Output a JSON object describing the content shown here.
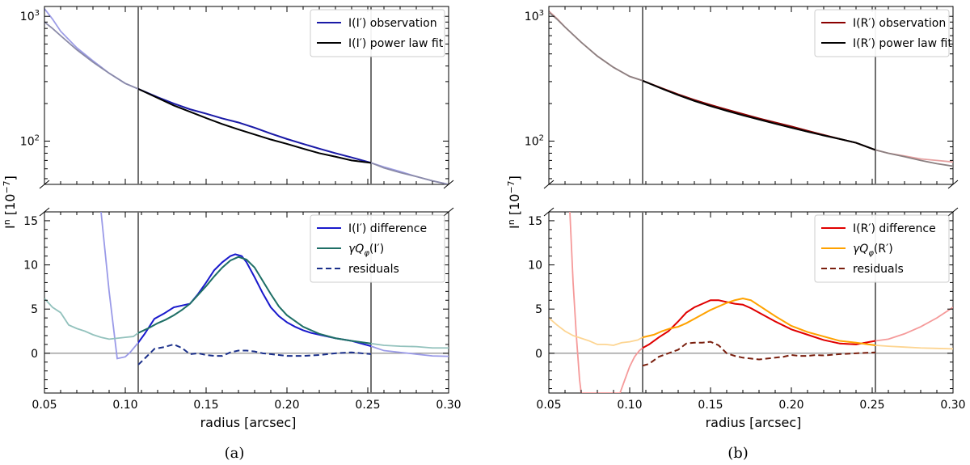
{
  "chart_data": [
    {
      "type": "line",
      "panel_label": "(a)",
      "xlabel": "radius [arcsec]",
      "ylabel_top": "I",
      "ylabel_sup": "n",
      "ylabel_unit": "[10",
      "ylabel_unit_exp": "−7",
      "ylabel_unit_close": "]",
      "xlim": [
        0.05,
        0.3
      ],
      "x_ticks": [
        0.05,
        0.1,
        0.15,
        0.2,
        0.25,
        0.3
      ],
      "x_tick_labels": [
        "0.05",
        "0.10",
        "0.15",
        "0.20",
        "0.25",
        "0.30"
      ],
      "vlines": [
        0.108,
        0.252
      ],
      "top": {
        "yscale": "log",
        "ylim": [
          45,
          1200
        ],
        "y_tick_labels": [
          {
            "value": 1000,
            "base": "10",
            "exp": "3"
          },
          {
            "value": 100,
            "base": "10",
            "exp": "2"
          }
        ],
        "series": [
          {
            "name": "I(I′) observation",
            "color": "#1a1aa6",
            "dash": "",
            "faded_color": "#9c9ce6",
            "x": [
              0.05,
              0.055,
              0.06,
              0.07,
              0.08,
              0.09,
              0.1,
              0.108,
              0.12,
              0.13,
              0.14,
              0.15,
              0.16,
              0.17,
              0.18,
              0.19,
              0.2,
              0.21,
              0.22,
              0.23,
              0.24,
              0.252,
              0.26,
              0.27,
              0.28,
              0.29,
              0.3
            ],
            "y": [
              1150,
              950,
              760,
              560,
              440,
              350,
              290,
              262,
              225,
              200,
              180,
              166,
              152,
              141,
              128,
              115,
              104,
              95,
              87,
              80,
              74,
              67,
              62,
              57,
              52,
              48,
              45
            ]
          },
          {
            "name": "I(I′) power law fit",
            "color": "#000000",
            "dash": "",
            "faded_color": "#8a8aa8",
            "x": [
              0.05,
              0.055,
              0.06,
              0.07,
              0.08,
              0.09,
              0.1,
              0.108,
              0.12,
              0.13,
              0.14,
              0.15,
              0.16,
              0.17,
              0.18,
              0.19,
              0.2,
              0.21,
              0.22,
              0.23,
              0.24,
              0.252,
              0.26,
              0.27,
              0.28,
              0.29,
              0.3
            ],
            "y": [
              900,
              800,
              700,
              540,
              430,
              350,
              290,
              262,
              222,
              193,
              172,
              153,
              137,
              124,
              113,
              103,
              95,
              87,
              80,
              75,
              70,
              67,
              61,
              56,
              52,
              48,
              45
            ]
          }
        ]
      },
      "bottom": {
        "yscale": "linear",
        "ylim": [
          -4.5,
          16
        ],
        "y_ticks": [
          0,
          5,
          10,
          15
        ],
        "y_tick_labels": [
          "0",
          "5",
          "10",
          "15"
        ],
        "zero_line": true,
        "series": [
          {
            "name": "I(I′) difference",
            "color": "#1a1acc",
            "dash": "",
            "faded_color": "#9a9ae8",
            "x": [
              0.085,
              0.09,
              0.095,
              0.1,
              0.103,
              0.108,
              0.112,
              0.118,
              0.124,
              0.13,
              0.135,
              0.14,
              0.145,
              0.15,
              0.155,
              0.16,
              0.165,
              0.168,
              0.172,
              0.175,
              0.18,
              0.185,
              0.19,
              0.195,
              0.2,
              0.205,
              0.21,
              0.215,
              0.22,
              0.23,
              0.24,
              0.252,
              0.26,
              0.27,
              0.28,
              0.29,
              0.3
            ],
            "y": [
              16,
              7,
              -0.6,
              -0.4,
              0.1,
              1.2,
              2.2,
              3.9,
              4.5,
              5.2,
              5.4,
              5.6,
              6.7,
              8.0,
              9.4,
              10.3,
              11.0,
              11.2,
              11.0,
              10.3,
              8.6,
              6.8,
              5.2,
              4.2,
              3.5,
              3.0,
              2.6,
              2.3,
              2.1,
              1.7,
              1.4,
              0.8,
              0.3,
              0.1,
              -0.1,
              -0.3,
              -0.35
            ]
          },
          {
            "name": "γQφ(I′)",
            "color": "#1f6f66",
            "dash": "",
            "faded_color": "#93c2bd",
            "x": [
              0.05,
              0.055,
              0.06,
              0.065,
              0.07,
              0.075,
              0.08,
              0.085,
              0.09,
              0.095,
              0.1,
              0.105,
              0.108,
              0.115,
              0.12,
              0.125,
              0.13,
              0.135,
              0.14,
              0.145,
              0.15,
              0.155,
              0.16,
              0.165,
              0.17,
              0.175,
              0.18,
              0.185,
              0.19,
              0.195,
              0.2,
              0.21,
              0.22,
              0.23,
              0.24,
              0.252,
              0.26,
              0.27,
              0.28,
              0.29,
              0.3
            ],
            "y": [
              6.2,
              5.2,
              4.6,
              3.2,
              2.8,
              2.5,
              2.1,
              1.8,
              1.6,
              1.7,
              1.8,
              1.9,
              2.3,
              2.9,
              3.4,
              3.8,
              4.3,
              4.9,
              5.6,
              6.6,
              7.6,
              8.7,
              9.7,
              10.5,
              10.9,
              10.6,
              9.7,
              8.2,
              6.7,
              5.3,
              4.3,
              3.0,
              2.2,
              1.7,
              1.4,
              1.1,
              0.9,
              0.8,
              0.75,
              0.6,
              0.6
            ]
          },
          {
            "name": "residuals",
            "color": "#1a2f8a",
            "dash": "7,4",
            "faded_color": "#1a2f8a",
            "x": [
              0.108,
              0.112,
              0.118,
              0.124,
              0.13,
              0.135,
              0.14,
              0.145,
              0.15,
              0.155,
              0.16,
              0.165,
              0.17,
              0.175,
              0.18,
              0.185,
              0.19,
              0.195,
              0.2,
              0.205,
              0.21,
              0.215,
              0.22,
              0.23,
              0.24,
              0.252
            ],
            "y": [
              -1.3,
              -0.6,
              0.5,
              0.7,
              1.0,
              0.6,
              -0.1,
              0.0,
              -0.2,
              -0.3,
              -0.3,
              0.1,
              0.3,
              0.3,
              0.2,
              0.0,
              -0.1,
              -0.2,
              -0.3,
              -0.3,
              -0.3,
              -0.25,
              -0.2,
              0.0,
              0.1,
              -0.1
            ]
          }
        ]
      }
    },
    {
      "type": "line",
      "panel_label": "(b)",
      "xlabel": "radius [arcsec]",
      "ylabel_top": "I",
      "ylabel_sup": "n",
      "ylabel_unit": "[10",
      "ylabel_unit_exp": "−7",
      "ylabel_unit_close": "]",
      "xlim": [
        0.05,
        0.3
      ],
      "x_ticks": [
        0.05,
        0.1,
        0.15,
        0.2,
        0.25,
        0.3
      ],
      "x_tick_labels": [
        "0.05",
        "0.10",
        "0.15",
        "0.20",
        "0.25",
        "0.30"
      ],
      "vlines": [
        0.108,
        0.252
      ],
      "top": {
        "yscale": "log",
        "ylim": [
          45,
          1200
        ],
        "y_tick_labels": [
          {
            "value": 1000,
            "base": "10",
            "exp": "3"
          },
          {
            "value": 100,
            "base": "10",
            "exp": "2"
          }
        ],
        "series": [
          {
            "name": "I(R′) observation",
            "color": "#8b0000",
            "dash": "",
            "faded_color": "#e6a0a0",
            "x": [
              0.05,
              0.055,
              0.06,
              0.07,
              0.08,
              0.09,
              0.1,
              0.108,
              0.12,
              0.13,
              0.14,
              0.15,
              0.16,
              0.17,
              0.18,
              0.19,
              0.2,
              0.21,
              0.22,
              0.23,
              0.24,
              0.252,
              0.26,
              0.27,
              0.28,
              0.29,
              0.3
            ],
            "y": [
              1100,
              960,
              820,
              620,
              480,
              390,
              330,
              305,
              265,
              237,
              214,
              195,
              179,
              165,
              152,
              141,
              131,
              121,
              112,
              104,
              97,
              85,
              80,
              76,
              72,
              70,
              68
            ]
          },
          {
            "name": "I(R′) power law fit",
            "color": "#000000",
            "dash": "",
            "faded_color": "#8a7f80",
            "x": [
              0.05,
              0.055,
              0.06,
              0.07,
              0.08,
              0.09,
              0.1,
              0.108,
              0.12,
              0.13,
              0.14,
              0.15,
              0.16,
              0.17,
              0.18,
              0.19,
              0.2,
              0.21,
              0.22,
              0.23,
              0.24,
              0.252,
              0.26,
              0.27,
              0.28,
              0.29,
              0.3
            ],
            "y": [
              1080,
              950,
              820,
              620,
              480,
              390,
              330,
              305,
              263,
              234,
              210,
              191,
              175,
              161,
              149,
              138,
              128,
              119,
              111,
              104,
              97,
              85,
              80,
              75,
              70,
              66,
              63
            ]
          }
        ]
      },
      "bottom": {
        "yscale": "linear",
        "ylim": [
          -4.5,
          16
        ],
        "y_ticks": [
          0,
          5,
          10,
          15
        ],
        "y_tick_labels": [
          "0",
          "5",
          "10",
          "15"
        ],
        "zero_line": true,
        "series": [
          {
            "name": "I(R′) difference",
            "color": "#e00000",
            "dash": "",
            "faded_color": "#f59a9a",
            "x": [
              0.063,
              0.065,
              0.067,
              0.069,
              0.07,
              0.094,
              0.097,
              0.1,
              0.103,
              0.106,
              0.108,
              0.112,
              0.118,
              0.124,
              0.13,
              0.135,
              0.14,
              0.145,
              0.15,
              0.155,
              0.16,
              0.165,
              0.17,
              0.175,
              0.18,
              0.19,
              0.2,
              0.21,
              0.22,
              0.23,
              0.24,
              0.252,
              0.26,
              0.27,
              0.28,
              0.29,
              0.3
            ],
            "y": [
              16,
              8,
              2,
              -3,
              -4.5,
              -4.5,
              -3,
              -1.5,
              -0.4,
              0.3,
              0.6,
              1.0,
              1.8,
              2.5,
              3.6,
              4.6,
              5.2,
              5.6,
              6.0,
              6.0,
              5.8,
              5.6,
              5.5,
              5.1,
              4.6,
              3.6,
              2.7,
              2.1,
              1.5,
              1.1,
              1.0,
              1.4,
              1.6,
              2.2,
              3.0,
              4.0,
              5.2
            ]
          },
          {
            "name": "γQφ(R′)",
            "color": "#ffa200",
            "dash": "",
            "faded_color": "#fdd592",
            "x": [
              0.05,
              0.055,
              0.06,
              0.065,
              0.07,
              0.075,
              0.08,
              0.085,
              0.09,
              0.095,
              0.1,
              0.105,
              0.108,
              0.115,
              0.12,
              0.125,
              0.13,
              0.135,
              0.14,
              0.145,
              0.15,
              0.155,
              0.16,
              0.165,
              0.17,
              0.175,
              0.18,
              0.19,
              0.2,
              0.21,
              0.22,
              0.23,
              0.24,
              0.252,
              0.26,
              0.27,
              0.28,
              0.29,
              0.3
            ],
            "y": [
              4.0,
              3.2,
              2.5,
              2.0,
              1.7,
              1.4,
              1.0,
              1.0,
              0.9,
              1.2,
              1.3,
              1.5,
              1.8,
              2.1,
              2.5,
              2.8,
              3.0,
              3.4,
              3.9,
              4.4,
              4.9,
              5.3,
              5.7,
              6.0,
              6.2,
              6.0,
              5.4,
              4.2,
              3.1,
              2.4,
              1.9,
              1.4,
              1.2,
              0.9,
              0.8,
              0.7,
              0.6,
              0.55,
              0.5
            ]
          },
          {
            "name": "residuals",
            "color": "#7a1f0e",
            "dash": "7,4",
            "faded_color": "#7a1f0e",
            "x": [
              0.108,
              0.112,
              0.118,
              0.124,
              0.13,
              0.135,
              0.14,
              0.145,
              0.15,
              0.155,
              0.16,
              0.165,
              0.17,
              0.175,
              0.18,
              0.185,
              0.19,
              0.195,
              0.2,
              0.205,
              0.21,
              0.215,
              0.22,
              0.23,
              0.24,
              0.252
            ],
            "y": [
              -1.4,
              -1.2,
              -0.4,
              0.0,
              0.4,
              1.1,
              1.2,
              1.2,
              1.3,
              0.9,
              0.0,
              -0.3,
              -0.5,
              -0.6,
              -0.7,
              -0.6,
              -0.5,
              -0.4,
              -0.2,
              -0.3,
              -0.3,
              -0.2,
              -0.25,
              -0.1,
              0.0,
              0.1
            ]
          }
        ]
      }
    }
  ]
}
